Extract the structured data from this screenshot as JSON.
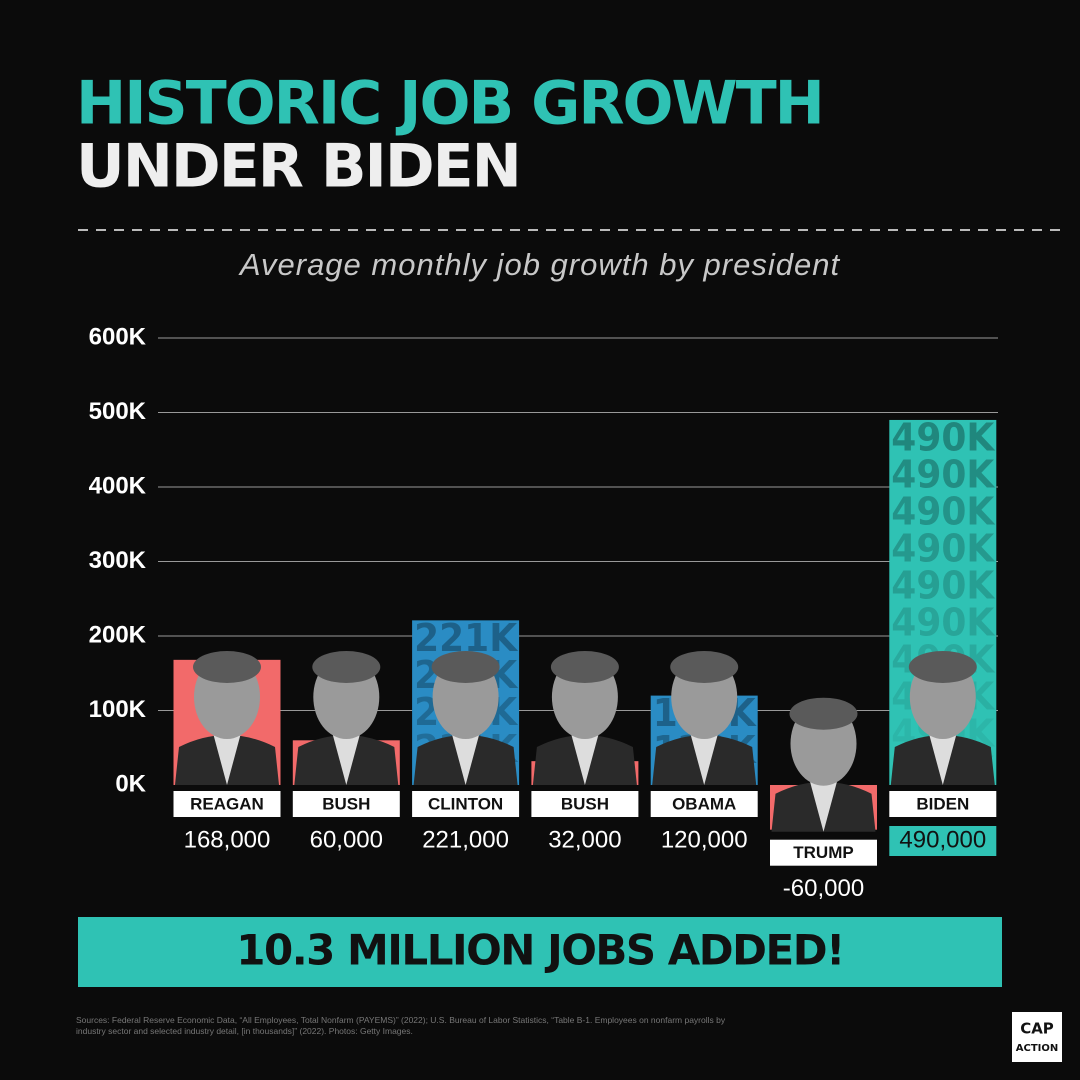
{
  "chart_data": {
    "type": "bar",
    "title": "HISTORIC JOB GROWTH",
    "title_line2": "UNDER BIDEN",
    "subtitle": "Average monthly job growth by president",
    "categories": [
      "REAGAN",
      "BUSH",
      "CLINTON",
      "BUSH",
      "OBAMA",
      "TRUMP",
      "BIDEN"
    ],
    "values": [
      168000,
      60000,
      221000,
      32000,
      120000,
      -60000,
      490000
    ],
    "value_labels": [
      "168,000",
      "60,000",
      "221,000",
      "32,000",
      "120,000",
      "-60,000",
      "490,000"
    ],
    "pattern_labels": [
      null,
      null,
      "221K",
      null,
      "120K",
      null,
      "490K"
    ],
    "colors": [
      "#f26a6a",
      "#f26a6a",
      "#2a8cc4",
      "#f26a6a",
      "#2a8cc4",
      "#f26a6a",
      "#2fc2b4"
    ],
    "ylim": [
      0,
      600000
    ],
    "yticks": [
      {
        "value": 0,
        "label": "0K"
      },
      {
        "value": 100000,
        "label": "100K"
      },
      {
        "value": 200000,
        "label": "200K"
      },
      {
        "value": 300000,
        "label": "300K"
      },
      {
        "value": 400000,
        "label": "400K"
      },
      {
        "value": 500000,
        "label": "500K"
      },
      {
        "value": 600000,
        "label": "600K"
      }
    ],
    "grid": true
  },
  "banner": "10.3 MILLION JOBS ADDED!",
  "source": "Sources: Federal Reserve Economic Data, “All Employees, Total Nonfarm (PAYEMS)” (2022); U.S. Bureau of Labor Statistics, “Table B-1. Employees on nonfarm payrolls by industry sector and selected industry detail, [in thousands]” (2022). Photos: Getty Images.",
  "logo": [
    "CAP",
    "ACTION"
  ]
}
